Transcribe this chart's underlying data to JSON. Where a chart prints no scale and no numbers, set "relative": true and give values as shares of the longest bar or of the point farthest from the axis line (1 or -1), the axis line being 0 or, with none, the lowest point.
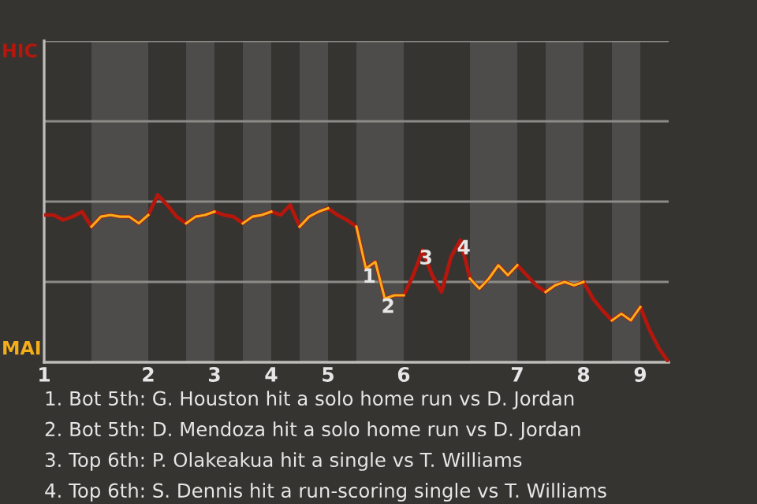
{
  "chart_data": {
    "type": "line",
    "relative": true,
    "categories": [
      "1",
      null,
      null,
      null,
      null,
      null,
      null,
      null,
      null,
      null,
      null,
      "2",
      null,
      null,
      null,
      null,
      null,
      null,
      "3",
      null,
      null,
      null,
      null,
      null,
      "4",
      null,
      null,
      null,
      null,
      null,
      "5",
      null,
      null,
      null,
      null,
      null,
      null,
      null,
      "6",
      null,
      null,
      null,
      null,
      null,
      null,
      null,
      null,
      null,
      null,
      null,
      "7",
      null,
      null,
      null,
      null,
      null,
      null,
      "8",
      null,
      null,
      null,
      null,
      null,
      "9",
      null,
      null,
      null
    ],
    "legend": false,
    "ref_lines": [
      {
        "axis": "y",
        "value": 0.48,
        "color": "#8c8b88"
      },
      {
        "axis": "y",
        "value": 0.96,
        "color": "#8c8b88"
      }
    ],
    "marker": "none",
    "line_style": "solid",
    "series": [
      {
        "name": "HIC",
        "color": "#b5170c",
        "values": [
          0.88,
          0.88,
          0.85,
          0.87,
          0.9,
          0.81,
          0.87,
          0.88,
          0.87,
          0.87,
          0.83,
          0.88,
          1,
          0.94,
          0.87,
          0.83,
          0.87,
          0.88,
          0.9,
          0.88,
          0.87,
          0.83,
          0.87,
          0.88,
          0.9,
          0.88,
          0.94,
          0.81,
          0.87,
          0.9,
          0.92,
          0.88,
          0.85,
          0.81,
          0.56,
          0.6,
          0.38,
          0.4,
          0.4,
          0.52,
          0.67,
          0.52,
          0.42,
          0.63,
          0.73,
          0.5,
          0.44,
          0.5,
          0.58,
          0.52,
          0.58,
          0.52,
          0.46,
          0.42,
          0.46,
          0.48,
          0.46,
          0.48,
          0.38,
          0.31,
          0.25,
          0.29,
          0.25,
          0.33,
          0.19,
          0.08,
          0
        ]
      },
      {
        "name": "MAI",
        "color": "#f5ae1a",
        "values": [
          null,
          null,
          null,
          null,
          null,
          0.81,
          0.87,
          0.88,
          0.87,
          0.87,
          0.83,
          0.88,
          null,
          null,
          null,
          0.83,
          0.87,
          0.88,
          0.9,
          null,
          null,
          0.83,
          0.87,
          0.88,
          0.9,
          null,
          null,
          0.81,
          0.87,
          0.9,
          0.92,
          null,
          null,
          0.81,
          0.56,
          0.6,
          0.38,
          0.4,
          0.4,
          null,
          null,
          null,
          null,
          null,
          null,
          0.5,
          0.44,
          0.5,
          0.58,
          0.52,
          0.58,
          null,
          null,
          0.42,
          0.46,
          0.48,
          0.46,
          0.48,
          null,
          null,
          0.25,
          0.29,
          0.25,
          0.33,
          null,
          null,
          null
        ]
      }
    ],
    "annotations": [
      {
        "text": "1",
        "y": 0.56
      },
      {
        "text": "2",
        "y": 0.38
      },
      {
        "text": "3",
        "y": 0.67
      },
      {
        "text": "4",
        "y": 0.73
      },
      "1. Bot 5th: G. Houston hit a solo home run vs D. Jordan",
      "2. Bot 5th: D. Mendoza hit a solo home run vs D. Jordan",
      "3. Top 6th: P. Olakeakua hit a single vs T. Williams",
      "4. Top 6th: S. Dennis hit a run-scoring single vs T. Williams"
    ]
  }
}
